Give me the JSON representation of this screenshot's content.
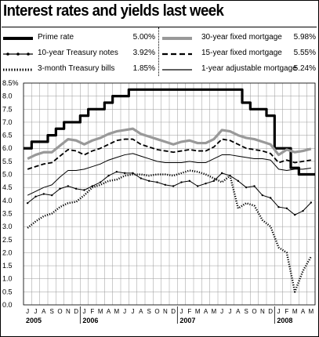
{
  "title": "Interest rates and yields last week",
  "legend": [
    {
      "key": "prime",
      "label": "Prime rate",
      "value": "5.00%",
      "color": "#000000",
      "style": "thick-solid"
    },
    {
      "key": "t10",
      "label": "10-year Treasury notes",
      "value": "3.92%",
      "color": "#000000",
      "style": "dot-marker"
    },
    {
      "key": "t3m",
      "label": "3-month Treasury bills",
      "value": "1.85%",
      "color": "#000000",
      "style": "dotted-thick"
    },
    {
      "key": "m30",
      "label": "30-year fixed mortgage",
      "value": "5.98%",
      "color": "#999999",
      "style": "thick-gray"
    },
    {
      "key": "m15",
      "label": "15-year fixed mortgage",
      "value": "5.55%",
      "color": "#000000",
      "style": "dashed"
    },
    {
      "key": "arm1",
      "label": "1-year adjustable mortgage",
      "value": "5.24%",
      "color": "#000000",
      "style": "thin-solid"
    }
  ],
  "chart_data": {
    "type": "line",
    "title": "Interest rates and yields last week",
    "y_unit": "%",
    "ylim": [
      0,
      8.5
    ],
    "y_ticks": [
      "8.5%",
      "8.0",
      "7.5",
      "7.0",
      "6.5",
      "6.0",
      "5.5",
      "5.0",
      "4.5",
      "4.0",
      "3.5",
      "3.0",
      "2.5",
      "2.0",
      "1.5",
      "1.0",
      "0.5",
      "0.0"
    ],
    "x_start": "2005-06",
    "x_end": "2008-05",
    "month_labels": [
      "J",
      "J",
      "A",
      "S",
      "O",
      "N",
      "D",
      "J",
      "F",
      "M",
      "A",
      "M",
      "J",
      "J",
      "A",
      "S",
      "O",
      "N",
      "D",
      "J",
      "F",
      "M",
      "A",
      "M",
      "J",
      "J",
      "A",
      "S",
      "O",
      "N",
      "D",
      "J",
      "F",
      "M",
      "A",
      "M"
    ],
    "year_labels": [
      {
        "label": "2005",
        "month": "2005-06"
      },
      {
        "label": "2006",
        "month": "2006-01"
      },
      {
        "label": "2007",
        "month": "2007-01"
      },
      {
        "label": "2008",
        "month": "2008-01"
      }
    ],
    "grid": true,
    "series": [
      {
        "key": "prime",
        "name": "Prime rate",
        "x": [
          "2005-06",
          "2005-07",
          "2005-08",
          "2005-09",
          "2005-10",
          "2005-11",
          "2005-12",
          "2006-01",
          "2006-02",
          "2006-03",
          "2006-04",
          "2006-05",
          "2006-06",
          "2006-07",
          "2006-08",
          "2006-09",
          "2006-10",
          "2006-11",
          "2006-12",
          "2007-01",
          "2007-02",
          "2007-03",
          "2007-04",
          "2007-05",
          "2007-06",
          "2007-07",
          "2007-08",
          "2007-09",
          "2007-10",
          "2007-11",
          "2007-12",
          "2008-01",
          "2008-02",
          "2008-03",
          "2008-04",
          "2008-05"
        ],
        "y": [
          6.0,
          6.25,
          6.25,
          6.5,
          6.75,
          7.0,
          7.0,
          7.25,
          7.5,
          7.5,
          7.75,
          8.0,
          8.0,
          8.25,
          8.25,
          8.25,
          8.25,
          8.25,
          8.25,
          8.25,
          8.25,
          8.25,
          8.25,
          8.25,
          8.25,
          8.25,
          8.25,
          7.75,
          7.5,
          7.5,
          7.25,
          6.0,
          6.0,
          5.25,
          5.0,
          5.0
        ]
      },
      {
        "key": "m30",
        "name": "30-year fixed mortgage",
        "x": [
          "2005-06",
          "2005-07",
          "2005-08",
          "2005-09",
          "2005-10",
          "2005-11",
          "2005-12",
          "2006-01",
          "2006-02",
          "2006-03",
          "2006-04",
          "2006-05",
          "2006-06",
          "2006-07",
          "2006-08",
          "2006-09",
          "2006-10",
          "2006-11",
          "2006-12",
          "2007-01",
          "2007-02",
          "2007-03",
          "2007-04",
          "2007-05",
          "2007-06",
          "2007-07",
          "2007-08",
          "2007-09",
          "2007-10",
          "2007-11",
          "2007-12",
          "2008-01",
          "2008-02",
          "2008-03",
          "2008-04",
          "2008-05"
        ],
        "y": [
          5.6,
          5.75,
          5.85,
          5.85,
          6.1,
          6.35,
          6.3,
          6.15,
          6.3,
          6.4,
          6.55,
          6.65,
          6.7,
          6.75,
          6.55,
          6.45,
          6.35,
          6.25,
          6.15,
          6.25,
          6.3,
          6.2,
          6.2,
          6.35,
          6.7,
          6.65,
          6.5,
          6.4,
          6.35,
          6.25,
          6.15,
          5.75,
          5.95,
          5.85,
          5.9,
          5.98
        ]
      },
      {
        "key": "m15",
        "name": "15-year fixed mortgage",
        "x": [
          "2005-06",
          "2005-07",
          "2005-08",
          "2005-09",
          "2005-10",
          "2005-11",
          "2005-12",
          "2006-01",
          "2006-02",
          "2006-03",
          "2006-04",
          "2006-05",
          "2006-06",
          "2006-07",
          "2006-08",
          "2006-09",
          "2006-10",
          "2006-11",
          "2006-12",
          "2007-01",
          "2007-02",
          "2007-03",
          "2007-04",
          "2007-05",
          "2007-06",
          "2007-07",
          "2007-08",
          "2007-09",
          "2007-10",
          "2007-11",
          "2007-12",
          "2008-01",
          "2008-02",
          "2008-03",
          "2008-04",
          "2008-05"
        ],
        "y": [
          5.2,
          5.3,
          5.4,
          5.45,
          5.7,
          5.95,
          5.9,
          5.75,
          5.9,
          6.0,
          6.15,
          6.3,
          6.35,
          6.35,
          6.15,
          6.05,
          5.95,
          5.9,
          5.85,
          5.9,
          5.95,
          5.9,
          5.9,
          6.05,
          6.35,
          6.3,
          6.15,
          6.0,
          5.95,
          5.9,
          5.8,
          5.45,
          5.55,
          5.45,
          5.5,
          5.55
        ]
      },
      {
        "key": "arm1",
        "name": "1-year adjustable mortgage",
        "x": [
          "2005-06",
          "2005-07",
          "2005-08",
          "2005-09",
          "2005-10",
          "2005-11",
          "2005-12",
          "2006-01",
          "2006-02",
          "2006-03",
          "2006-04",
          "2006-05",
          "2006-06",
          "2006-07",
          "2006-08",
          "2006-09",
          "2006-10",
          "2006-11",
          "2006-12",
          "2007-01",
          "2007-02",
          "2007-03",
          "2007-04",
          "2007-05",
          "2007-06",
          "2007-07",
          "2007-08",
          "2007-09",
          "2007-10",
          "2007-11",
          "2007-12",
          "2008-01",
          "2008-02",
          "2008-03",
          "2008-04",
          "2008-05"
        ],
        "y": [
          4.2,
          4.35,
          4.5,
          4.6,
          4.9,
          5.15,
          5.15,
          5.2,
          5.3,
          5.4,
          5.55,
          5.65,
          5.75,
          5.8,
          5.7,
          5.6,
          5.5,
          5.45,
          5.45,
          5.45,
          5.5,
          5.45,
          5.45,
          5.6,
          5.75,
          5.75,
          5.7,
          5.65,
          5.6,
          5.6,
          5.55,
          5.2,
          5.15,
          5.2,
          5.2,
          5.24
        ]
      },
      {
        "key": "t10",
        "name": "10-year Treasury notes",
        "x": [
          "2005-06",
          "2005-07",
          "2005-08",
          "2005-09",
          "2005-10",
          "2005-11",
          "2005-12",
          "2006-01",
          "2006-02",
          "2006-03",
          "2006-04",
          "2006-05",
          "2006-06",
          "2006-07",
          "2006-08",
          "2006-09",
          "2006-10",
          "2006-11",
          "2006-12",
          "2007-01",
          "2007-02",
          "2007-03",
          "2007-04",
          "2007-05",
          "2007-06",
          "2007-07",
          "2007-08",
          "2007-09",
          "2007-10",
          "2007-11",
          "2007-12",
          "2008-01",
          "2008-02",
          "2008-03",
          "2008-04",
          "2008-05"
        ],
        "y": [
          3.9,
          4.15,
          4.25,
          4.2,
          4.45,
          4.55,
          4.45,
          4.4,
          4.55,
          4.7,
          4.95,
          5.1,
          5.05,
          5.05,
          4.85,
          4.75,
          4.7,
          4.6,
          4.55,
          4.7,
          4.75,
          4.55,
          4.65,
          4.75,
          5.05,
          4.95,
          4.75,
          4.5,
          4.55,
          4.2,
          4.1,
          3.75,
          3.7,
          3.45,
          3.6,
          3.92
        ]
      },
      {
        "key": "t3m",
        "name": "3-month Treasury bills",
        "x": [
          "2005-06",
          "2005-07",
          "2005-08",
          "2005-09",
          "2005-10",
          "2005-11",
          "2005-12",
          "2006-01",
          "2006-02",
          "2006-03",
          "2006-04",
          "2006-05",
          "2006-06",
          "2006-07",
          "2006-08",
          "2006-09",
          "2006-10",
          "2006-11",
          "2006-12",
          "2007-01",
          "2007-02",
          "2007-03",
          "2007-04",
          "2007-05",
          "2007-06",
          "2007-07",
          "2007-08",
          "2007-09",
          "2007-10",
          "2007-11",
          "2007-12",
          "2008-01",
          "2008-02",
          "2008-03",
          "2008-04",
          "2008-05"
        ],
        "y": [
          2.95,
          3.2,
          3.4,
          3.5,
          3.75,
          3.9,
          3.95,
          4.2,
          4.5,
          4.6,
          4.75,
          4.8,
          4.95,
          5.0,
          5.0,
          4.95,
          5.0,
          5.0,
          4.95,
          5.05,
          5.15,
          5.1,
          5.0,
          4.85,
          4.7,
          4.95,
          3.7,
          3.9,
          3.8,
          3.25,
          3.0,
          2.2,
          2.0,
          0.5,
          1.3,
          1.85
        ]
      }
    ]
  }
}
